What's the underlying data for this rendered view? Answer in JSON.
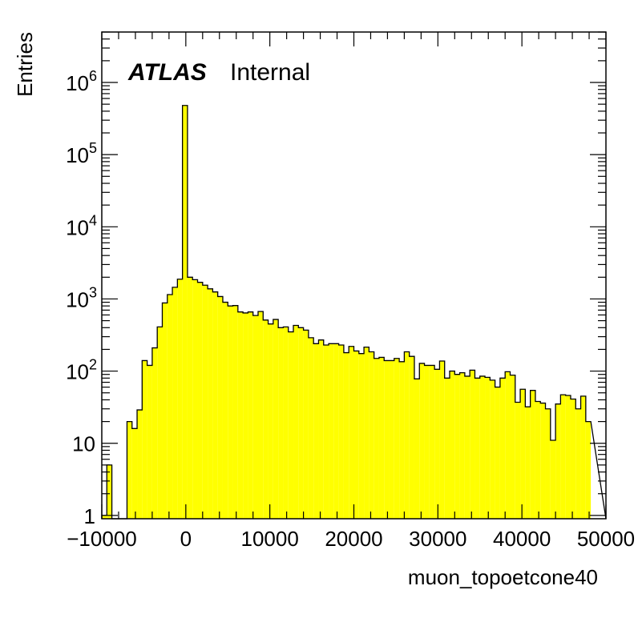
{
  "chart_data": {
    "type": "bar",
    "style": "histogram-step",
    "xlabel": "muon_topoetcone40",
    "ylabel": "Entries",
    "label_bold": "ATLAS",
    "label_sub": "Internal",
    "xlim": [
      -10000,
      50000
    ],
    "ylim": [
      0.9,
      5000000
    ],
    "yscale": "log",
    "fill_color": "#ffff00",
    "line_color": "#000000",
    "bin_width": 600,
    "bin_start": -10000,
    "x_ticks": [
      {
        "value": -10000,
        "label": "−10000"
      },
      {
        "value": 0,
        "label": "0"
      },
      {
        "value": 10000,
        "label": "10000"
      },
      {
        "value": 20000,
        "label": "20000"
      },
      {
        "value": 30000,
        "label": "30000"
      },
      {
        "value": 40000,
        "label": "40000"
      },
      {
        "value": 50000,
        "label": "50000"
      }
    ],
    "y_ticks": [
      {
        "value": 1,
        "base": "1",
        "exp": ""
      },
      {
        "value": 10,
        "base": "10",
        "exp": ""
      },
      {
        "value": 100,
        "base": "10",
        "exp": "2"
      },
      {
        "value": 1000,
        "base": "10",
        "exp": "3"
      },
      {
        "value": 10000,
        "base": "10",
        "exp": "4"
      },
      {
        "value": 100000,
        "base": "10",
        "exp": "5"
      },
      {
        "value": 1000000,
        "base": "10",
        "exp": "6"
      }
    ],
    "values": [
      1,
      5,
      0,
      0,
      0,
      20,
      16,
      29,
      140,
      120,
      210,
      410,
      880,
      1150,
      1450,
      1880,
      480000,
      2000,
      1850,
      1700,
      1550,
      1380,
      1250,
      1080,
      900,
      800,
      810,
      660,
      640,
      660,
      590,
      670,
      510,
      450,
      520,
      400,
      410,
      350,
      430,
      400,
      370,
      290,
      240,
      270,
      230,
      240,
      240,
      230,
      180,
      220,
      190,
      175,
      215,
      185,
      150,
      155,
      140,
      140,
      150,
      135,
      185,
      160,
      78,
      128,
      120,
      120,
      106,
      138,
      80,
      100,
      90,
      95,
      85,
      103,
      80,
      85,
      82,
      75,
      60,
      80,
      98,
      88,
      37,
      56,
      32,
      54,
      38,
      36,
      30,
      11,
      35,
      47,
      46,
      41,
      30,
      45,
      20
    ]
  }
}
